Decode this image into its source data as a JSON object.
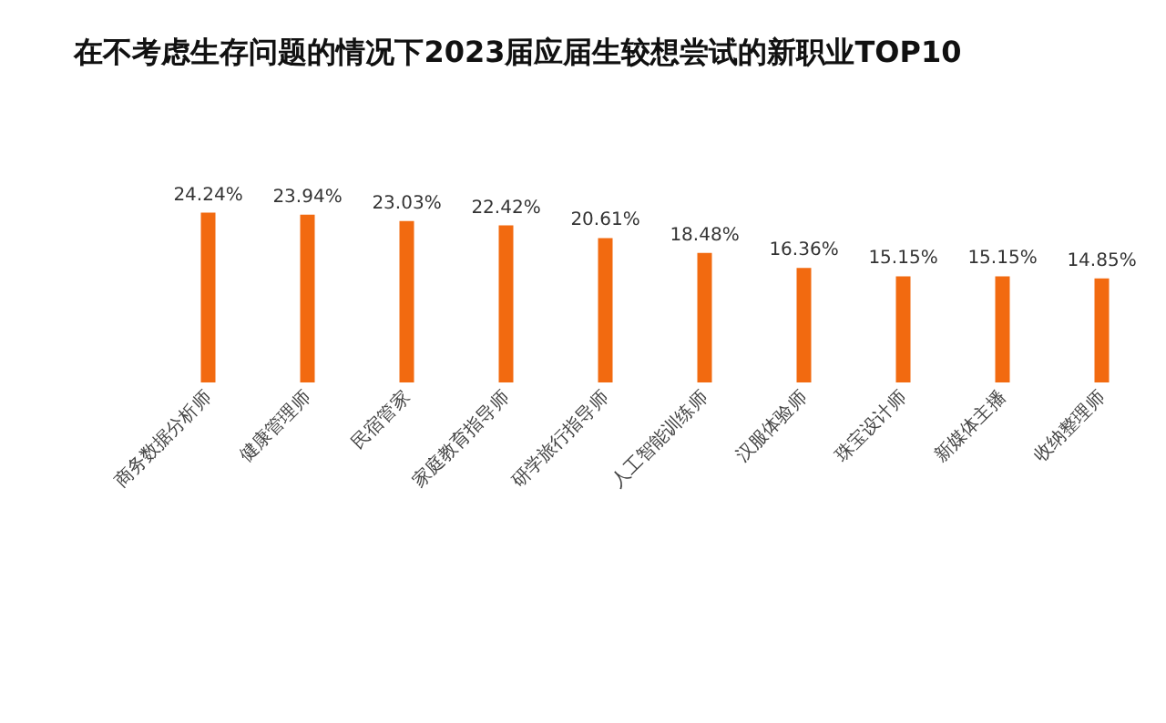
{
  "chart_data": {
    "type": "bar",
    "title": "在不考虑生存问题的情况下2023届应届生较想尝试的新职业TOP10",
    "categories": [
      "商务数据分析师",
      "健康管理师",
      "民宿管家",
      "家庭教育指导师",
      "研学旅行指导师",
      "人工智能训练师",
      "汉服体验师",
      "珠宝设计师",
      "新媒体主播",
      "收纳整理师"
    ],
    "values": [
      24.24,
      23.94,
      23.03,
      22.42,
      20.61,
      18.48,
      16.36,
      15.15,
      15.15,
      14.85
    ],
    "value_labels": [
      "24.24%",
      "23.94%",
      "23.03%",
      "22.42%",
      "20.61%",
      "18.48%",
      "16.36%",
      "15.15%",
      "15.15%",
      "14.85%"
    ],
    "color": "#f26a10",
    "grid": false
  }
}
